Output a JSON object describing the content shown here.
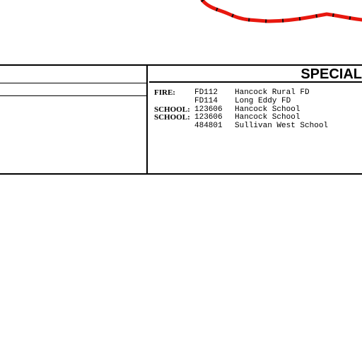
{
  "map": {
    "boundary_color": "#e8180f",
    "boundary_style": "dashed-red-with-black-ticks"
  },
  "table": {
    "header_title": "SPECIAL",
    "districts": [
      {
        "type": "FIRE:",
        "code": "FD112",
        "name": "Hancock Rural FD"
      },
      {
        "type": "",
        "code": "FD114",
        "name": "Long Eddy FD"
      },
      {
        "type": "SCHOOL:",
        "code": "123606",
        "name": "Hancock School"
      },
      {
        "type": "SCHOOL:",
        "code": "123606",
        "name": "Hancock School"
      },
      {
        "type": "",
        "code": "484801",
        "name": "Sullivan West School"
      }
    ]
  }
}
